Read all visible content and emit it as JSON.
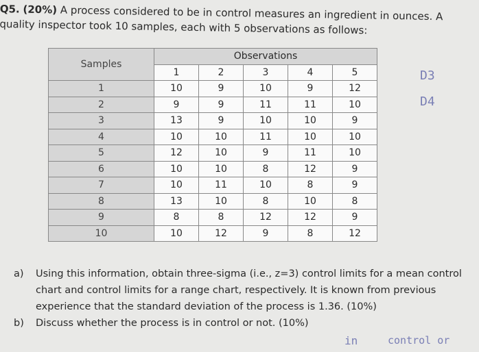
{
  "question": {
    "label": "Q5.",
    "weight": "(20%)",
    "text": "A process considered to be in control measures an ingredient in ounces. A quality inspector took 10 samples, each with 5 observations as follows:"
  },
  "table": {
    "samples_header": "Samples",
    "observations_header": "Observations",
    "columns": [
      1,
      2,
      3,
      4,
      5
    ],
    "rows": [
      [
        1,
        10,
        9,
        10,
        9,
        12
      ],
      [
        2,
        9,
        9,
        11,
        11,
        10
      ],
      [
        3,
        13,
        9,
        10,
        10,
        9
      ],
      [
        4,
        10,
        10,
        11,
        10,
        10
      ],
      [
        5,
        12,
        10,
        9,
        11,
        10
      ],
      [
        6,
        10,
        10,
        8,
        12,
        9
      ],
      [
        7,
        10,
        11,
        10,
        8,
        9
      ],
      [
        8,
        13,
        10,
        8,
        10,
        8
      ],
      [
        9,
        8,
        8,
        12,
        12,
        9
      ],
      [
        10,
        10,
        12,
        9,
        8,
        12
      ]
    ]
  },
  "parts": [
    {
      "label": "a)",
      "text": "Using this information, obtain three-sigma (i.e., z=3) control limits for a mean control chart and control limits for a range chart, respectively. It is known from previous experience that the standard deviation of the process is 1.36. (10%)"
    },
    {
      "label": "b)",
      "text": "Discuss whether the process is in control or not. (10%)"
    }
  ],
  "handwriting": [
    "D3",
    "D4",
    "in",
    "control or"
  ]
}
